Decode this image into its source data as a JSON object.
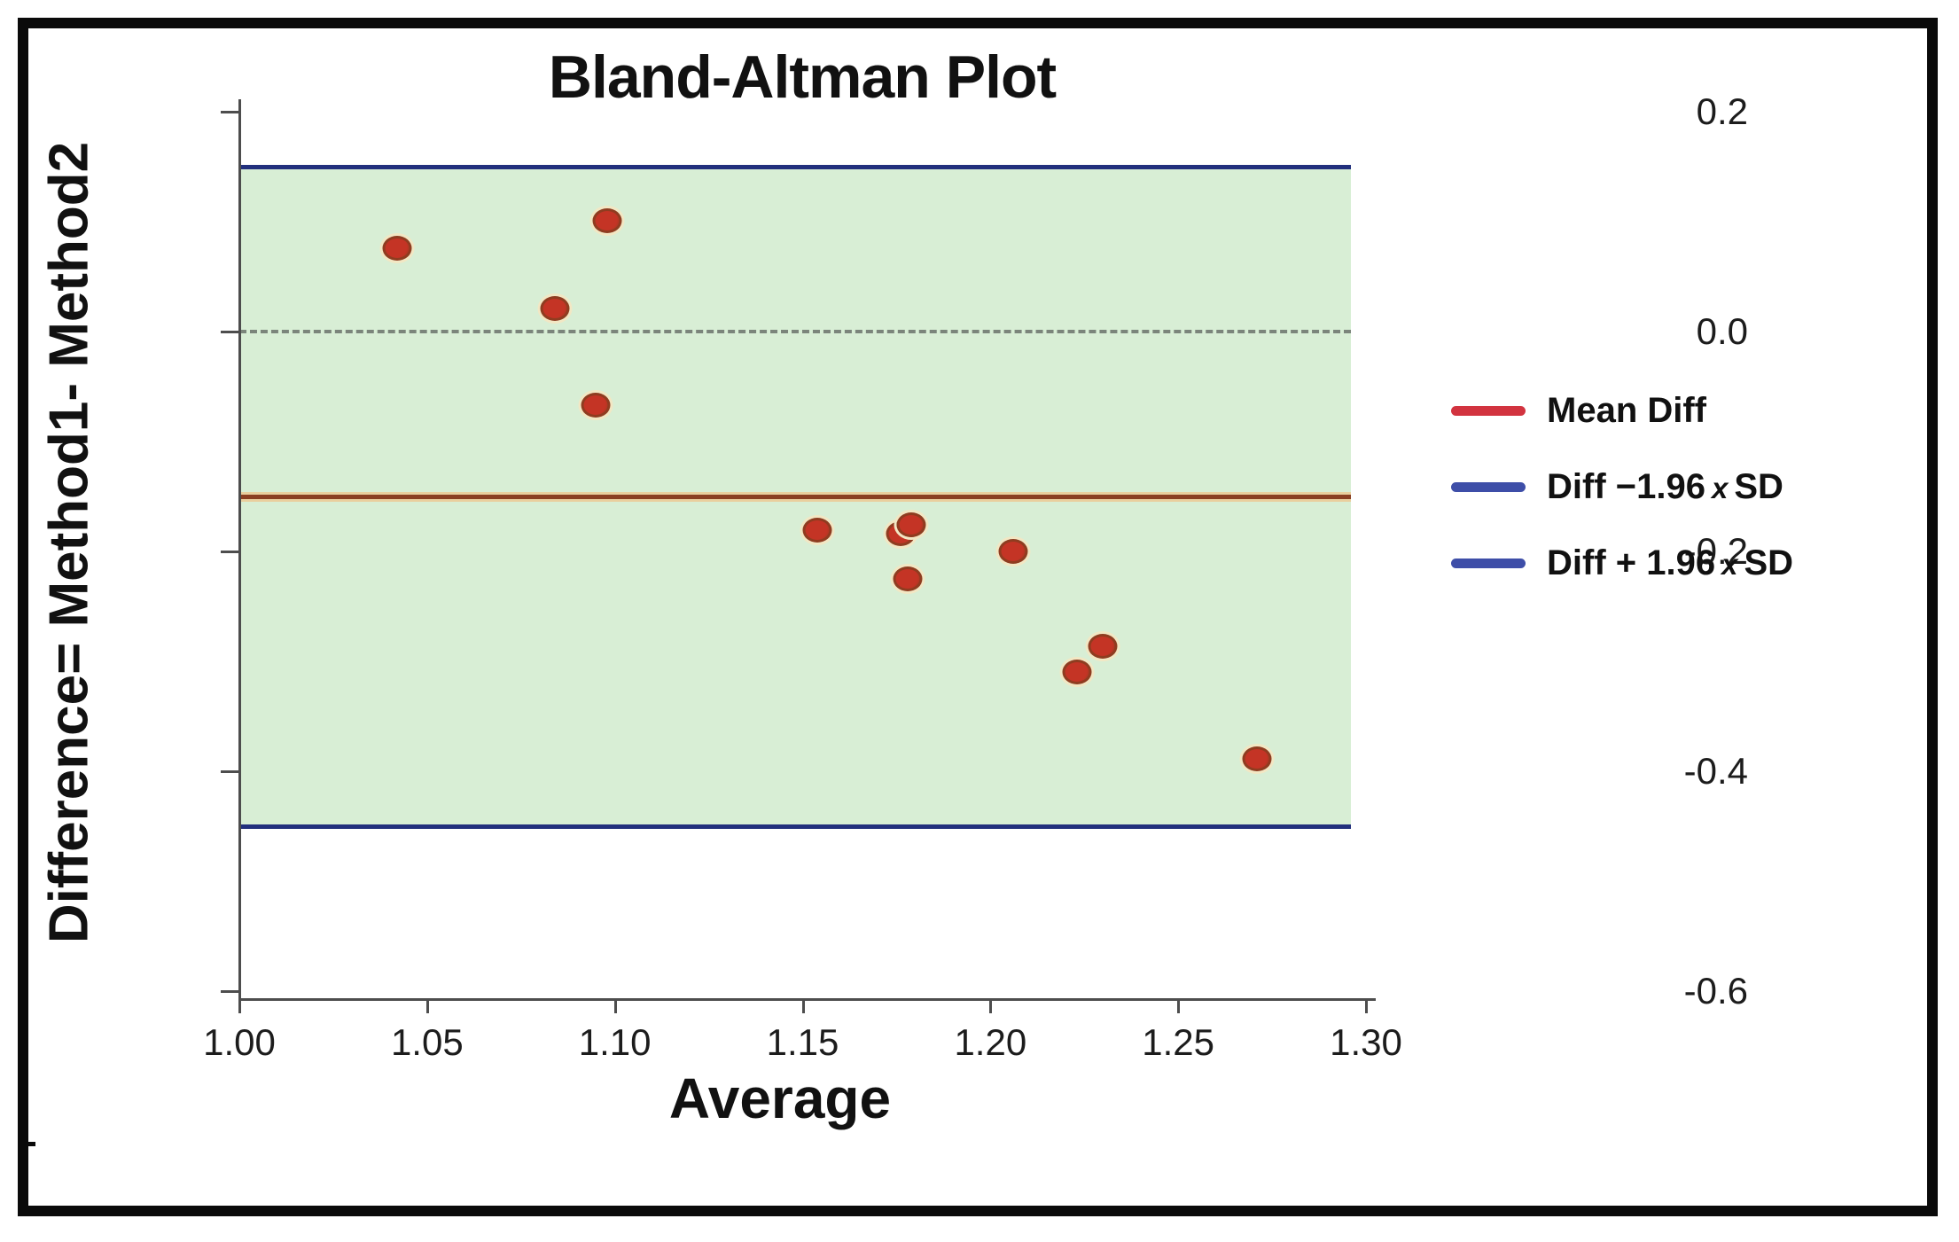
{
  "window": {
    "background": "#ffffff",
    "frame_color": "#0a0a0a"
  },
  "chart_data": {
    "type": "scatter",
    "title": "Bland-Altman Plot",
    "xlabel": "Average",
    "ylabel": "Difference= Method1- Method2",
    "xlim": [
      1.0,
      1.3
    ],
    "ylim": [
      -0.6,
      0.2
    ],
    "grid": false,
    "legend_position": "right-outside",
    "x_ticks": [
      {
        "value": 1.0,
        "label": "1.00"
      },
      {
        "value": 1.05,
        "label": "1.05"
      },
      {
        "value": 1.1,
        "label": "1.10"
      },
      {
        "value": 1.15,
        "label": "1.15"
      },
      {
        "value": 1.2,
        "label": "1.20"
      },
      {
        "value": 1.25,
        "label": "1.25"
      },
      {
        "value": 1.3,
        "label": "1.30"
      }
    ],
    "y_ticks": [
      {
        "value": 0.2,
        "label": "0.2"
      },
      {
        "value": 0.0,
        "label": "0.0"
      },
      {
        "value": -0.2,
        "label": "-0.2"
      },
      {
        "value": -0.4,
        "label": "-0.4"
      },
      {
        "value": -0.6,
        "label": "-0.6"
      }
    ],
    "points": [
      [
        1.042,
        0.076
      ],
      [
        1.084,
        0.021
      ],
      [
        1.098,
        0.101
      ],
      [
        1.095,
        -0.067
      ],
      [
        1.154,
        -0.181
      ],
      [
        1.176,
        -0.184
      ],
      [
        1.179,
        -0.176
      ],
      [
        1.178,
        -0.225
      ],
      [
        1.206,
        -0.2
      ],
      [
        1.223,
        -0.31
      ],
      [
        1.23,
        -0.286
      ],
      [
        1.271,
        -0.389
      ]
    ],
    "reference_lines": [
      {
        "name": "upper_limit",
        "value": 0.15,
        "style": "solid",
        "color": "#22307d"
      },
      {
        "name": "zero",
        "value": 0.0,
        "style": "dashed",
        "color": "#7b857b"
      },
      {
        "name": "mean_diff",
        "value": -0.15,
        "style": "solid",
        "color": "#8a3f22"
      },
      {
        "name": "lower_limit",
        "value": -0.45,
        "style": "solid",
        "color": "#22307d"
      }
    ],
    "band": {
      "from": 0.15,
      "to": -0.45,
      "color": "#d8eed5"
    },
    "legend": [
      {
        "pre": "Mean Diff",
        "x": "",
        "post": "",
        "swatch_color": "#d2333f"
      },
      {
        "pre": "Diff −1.96",
        "x": "x",
        "post": "SD",
        "swatch_color": "#3e4ea8"
      },
      {
        "pre": "Diff + 1.96",
        "x": "x",
        "post": "SD",
        "swatch_color": "#3e4ea8"
      }
    ],
    "point_style": {
      "fill": "#c43425",
      "border": "#8f3c20",
      "halo": "#f2e7c4"
    }
  }
}
